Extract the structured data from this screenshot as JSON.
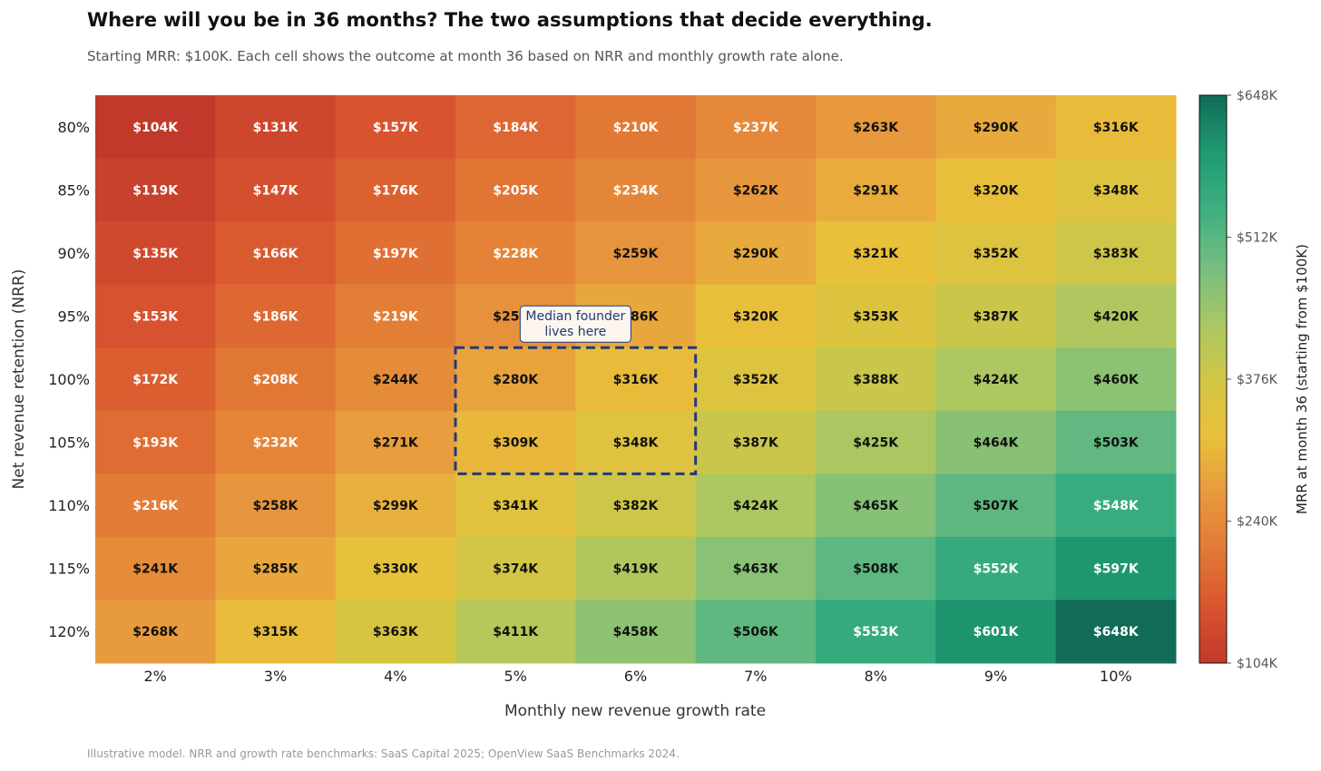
{
  "chart_data": {
    "type": "heatmap",
    "title": "Where will you be in 36 months? The two assumptions that decide everything.",
    "subtitle": "Starting MRR: $100K. Each cell shows the outcome at month 36 based on NRR and monthly growth rate alone.",
    "xlabel": "Monthly new revenue growth rate",
    "ylabel": "Net revenue retention (NRR)",
    "x_categories": [
      "2%",
      "3%",
      "4%",
      "5%",
      "6%",
      "7%",
      "8%",
      "9%",
      "10%"
    ],
    "y_categories": [
      "80%",
      "85%",
      "90%",
      "95%",
      "100%",
      "105%",
      "110%",
      "115%",
      "120%"
    ],
    "values_k": [
      [
        104,
        131,
        157,
        184,
        210,
        237,
        263,
        290,
        316
      ],
      [
        119,
        147,
        176,
        205,
        234,
        262,
        291,
        320,
        348
      ],
      [
        135,
        166,
        197,
        228,
        259,
        290,
        321,
        352,
        383
      ],
      [
        153,
        186,
        219,
        252,
        286,
        320,
        353,
        387,
        420
      ],
      [
        172,
        208,
        244,
        280,
        316,
        352,
        388,
        424,
        460
      ],
      [
        193,
        232,
        271,
        309,
        348,
        387,
        425,
        464,
        503
      ],
      [
        216,
        258,
        299,
        341,
        382,
        424,
        465,
        507,
        548
      ],
      [
        241,
        285,
        330,
        374,
        419,
        463,
        508,
        552,
        597
      ],
      [
        268,
        315,
        363,
        411,
        458,
        506,
        553,
        601,
        648
      ]
    ],
    "colorbar": {
      "label": "MRR at month 36 (starting from $100K)",
      "range": [
        104,
        648
      ],
      "ticks": [
        104,
        240,
        376,
        512,
        648
      ],
      "tick_labels": [
        "$104K",
        "$240K",
        "$376K",
        "$512K",
        "$648K"
      ]
    },
    "colors": [
      "#c0392b",
      "#d9552f",
      "#e27a35",
      "#e89a3e",
      "#e8c03a",
      "#d2c645",
      "#a8c765",
      "#74bd80",
      "#3daf80",
      "#1f9a72",
      "#116b57"
    ],
    "annotation": {
      "text_line1": "Median founder",
      "text_line2": "lives here",
      "highlight_x": [
        "5%",
        "6%"
      ],
      "highlight_y": [
        "100%",
        "105%"
      ]
    },
    "footnote": "Illustrative model. NRR and growth rate benchmarks: SaaS Capital 2025; OpenView SaaS Benchmarks 2024."
  }
}
